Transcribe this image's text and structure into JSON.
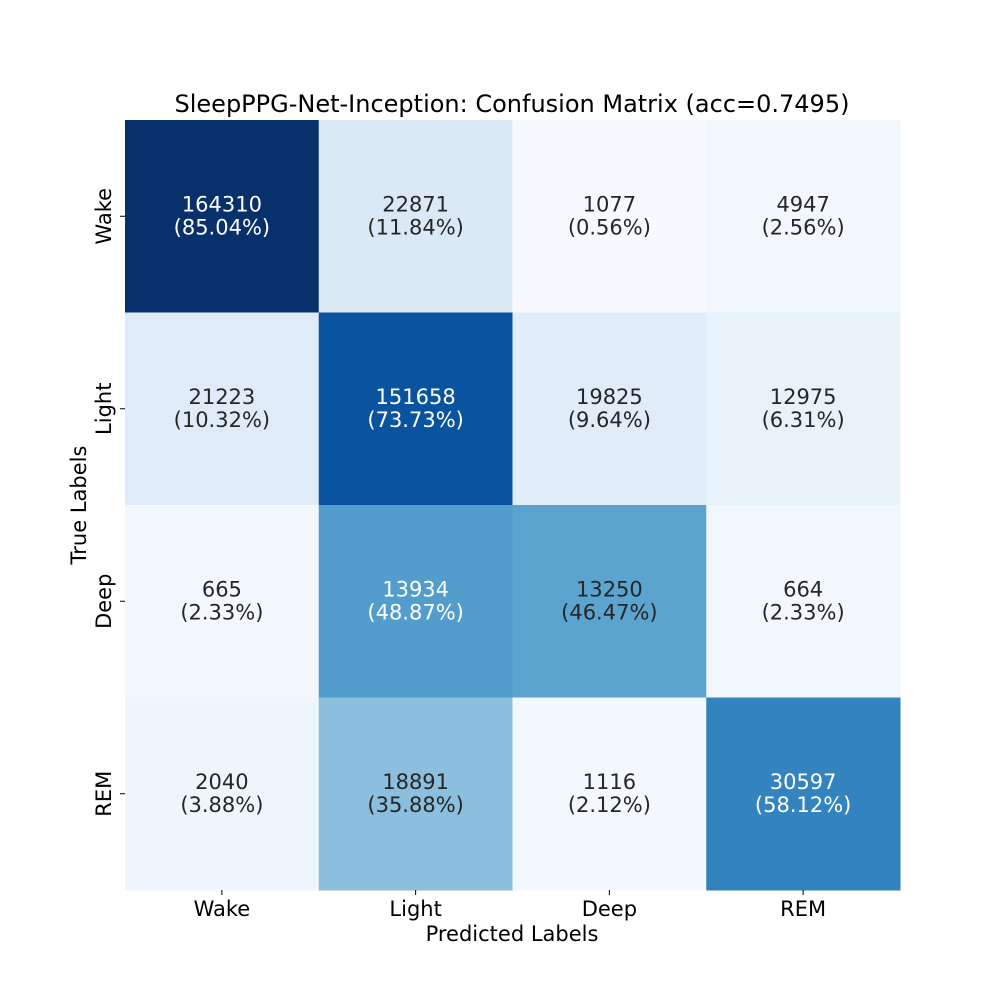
{
  "chart_data": {
    "type": "heatmap",
    "title": "SleepPPG-Net-Inception: Confusion Matrix (acc=0.7495)",
    "xlabel": "Predicted Labels",
    "ylabel": "True Labels",
    "x_categories": [
      "Wake",
      "Light",
      "Deep",
      "REM"
    ],
    "y_categories": [
      "Wake",
      "Light",
      "Deep",
      "REM"
    ],
    "counts": [
      [
        164310,
        22871,
        1077,
        4947
      ],
      [
        21223,
        151658,
        19825,
        12975
      ],
      [
        665,
        13934,
        13250,
        664
      ],
      [
        2040,
        18891,
        1116,
        30597
      ]
    ],
    "percent_labels": [
      [
        "(85.04%)",
        "(11.84%)",
        "(0.56%)",
        "(2.56%)"
      ],
      [
        "(10.32%)",
        "(73.73%)",
        "(9.64%)",
        "(6.31%)"
      ],
      [
        "(2.33%)",
        "(48.87%)",
        "(46.47%)",
        "(2.33%)"
      ],
      [
        "(3.88%)",
        "(35.88%)",
        "(2.12%)",
        "(58.12%)"
      ]
    ],
    "row_fractions": [
      [
        0.8504,
        0.1184,
        0.0056,
        0.0256
      ],
      [
        0.1032,
        0.7373,
        0.0964,
        0.0631
      ],
      [
        0.0233,
        0.4887,
        0.4647,
        0.0233
      ],
      [
        0.0388,
        0.3588,
        0.0212,
        0.5812
      ]
    ],
    "colormap": "Blues",
    "color_range": [
      0,
      0.8504
    ],
    "colorbar": false,
    "grid": false
  }
}
